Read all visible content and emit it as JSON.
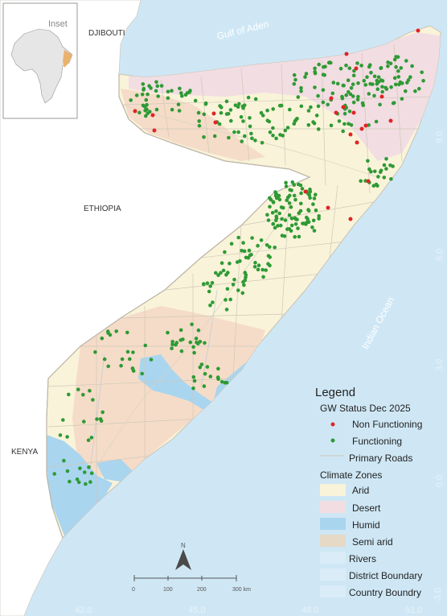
{
  "inset": {
    "label": "Inset"
  },
  "labels": {
    "djibouti": "DJIBOUTI",
    "gulf": "Gulf of Aden",
    "ethiopia": "ETHIOPIA",
    "kenya": "KENYA",
    "ocean": "Indian Ocean"
  },
  "lat_ticks": [
    "9.0",
    "6.0",
    "3.0",
    "0.0",
    "-3.0"
  ],
  "lon_ticks": [
    "42.0",
    "45.0",
    "48.0",
    "51.0"
  ],
  "scale": {
    "ticks": [
      "0",
      "100",
      "200",
      "300 km"
    ]
  },
  "north_arrow": {
    "label": "N"
  },
  "legend": {
    "title": "Legend",
    "status_title": "GW Status Dec 2025",
    "non_functioning": "Non Functioning",
    "functioning": "Functioning",
    "roads": "Primary Roads",
    "climate_title": "Climate Zones",
    "arid": "Arid",
    "desert": "Desert",
    "humid": "Humid",
    "semi_arid": "Semi arid",
    "rivers": "Rivers",
    "district": "District Boundary",
    "country": "Country Boundry"
  },
  "colors": {
    "sea": "#cfe7f5",
    "land_other": "#ffffff",
    "arid": "#f9f3d9",
    "desert": "#f1dde2",
    "humid": "#a9d5ef",
    "semi_arid": "#f5dcc8",
    "functioning": "#2e9a35",
    "non_functioning": "#e02424",
    "roads": "#cfc8b8",
    "boundary": "#c9c2b4"
  },
  "wells_summary": {
    "functioning_count": 420,
    "non_functioning_count": 22
  }
}
